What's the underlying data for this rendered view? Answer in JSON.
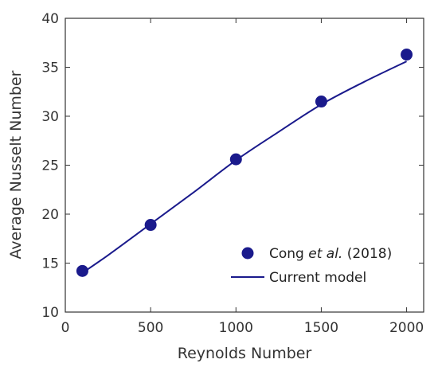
{
  "chart_data": {
    "type": "scatter",
    "xlabel": "Reynolds Number",
    "ylabel": "Average Nusselt Number",
    "xlim": [
      0,
      2100
    ],
    "ylim": [
      10,
      40
    ],
    "x_ticks": [
      "0",
      "500",
      "1000",
      "1500",
      "2000"
    ],
    "y_ticks": [
      "10",
      "15",
      "20",
      "25",
      "30",
      "35",
      "40"
    ],
    "grid": false,
    "legend_position": "bottom-right",
    "series": [
      {
        "name_pre": "Cong ",
        "name_italic": "et al.",
        "name_post": " (2018)",
        "marker": "circle",
        "color": "#1a1a8c",
        "x": [
          100,
          500,
          1000,
          1500,
          2000
        ],
        "y": [
          14.2,
          18.9,
          25.6,
          31.5,
          36.3
        ]
      },
      {
        "name": "Current model",
        "marker": "line",
        "color": "#1a1a8c",
        "x": [
          100,
          250,
          500,
          750,
          1000,
          1250,
          1500,
          1750,
          2000
        ],
        "y": [
          14.0,
          15.8,
          19.0,
          22.2,
          25.5,
          28.4,
          31.2,
          33.5,
          35.6
        ]
      }
    ]
  }
}
